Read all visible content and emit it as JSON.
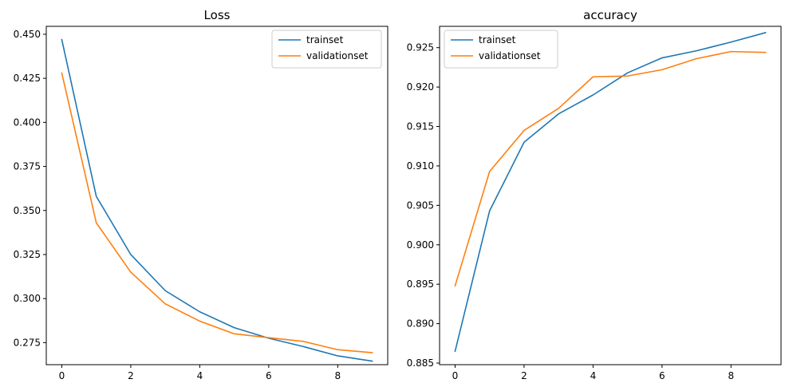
{
  "chart_data": [
    {
      "type": "line",
      "title": "Loss",
      "xlabel": "",
      "ylabel": "",
      "x": [
        0,
        1,
        2,
        3,
        4,
        5,
        6,
        7,
        8,
        9
      ],
      "xlim": [
        -0.45,
        9.45
      ],
      "ylim": [
        0.2625,
        0.4545
      ],
      "xticks": [
        0,
        2,
        4,
        6,
        8
      ],
      "yticks": [
        0.275,
        0.3,
        0.325,
        0.35,
        0.375,
        0.4,
        0.425,
        0.45
      ],
      "ytick_labels": [
        "0.275",
        "0.300",
        "0.325",
        "0.350",
        "0.375",
        "0.400",
        "0.425",
        "0.450"
      ],
      "grid": false,
      "legend_position": "top-right",
      "series": [
        {
          "name": "trainset",
          "color": "#1f77b4",
          "values": [
            0.447,
            0.358,
            0.325,
            0.3045,
            0.2925,
            0.2835,
            0.2775,
            0.2728,
            0.2675,
            0.2645
          ]
        },
        {
          "name": "validationset",
          "color": "#ff7f0e",
          "values": [
            0.428,
            0.343,
            0.315,
            0.297,
            0.2872,
            0.28,
            0.2778,
            0.2757,
            0.271,
            0.2693
          ]
        }
      ]
    },
    {
      "type": "line",
      "title": "accuracy",
      "xlabel": "",
      "ylabel": "",
      "x": [
        0,
        1,
        2,
        3,
        4,
        5,
        6,
        7,
        8,
        9
      ],
      "xlim": [
        -0.45,
        9.45
      ],
      "ylim": [
        0.8848,
        0.9277
      ],
      "xticks": [
        0,
        2,
        4,
        6,
        8
      ],
      "yticks": [
        0.885,
        0.89,
        0.895,
        0.9,
        0.905,
        0.91,
        0.915,
        0.92,
        0.925
      ],
      "ytick_labels": [
        "0.885",
        "0.890",
        "0.895",
        "0.900",
        "0.905",
        "0.910",
        "0.915",
        "0.920",
        "0.925"
      ],
      "grid": false,
      "legend_position": "top-left",
      "series": [
        {
          "name": "trainset",
          "color": "#1f77b4",
          "values": [
            0.8865,
            0.9043,
            0.913,
            0.9166,
            0.919,
            0.9218,
            0.9237,
            0.9246,
            0.9257,
            0.9269
          ]
        },
        {
          "name": "validationset",
          "color": "#ff7f0e",
          "values": [
            0.8948,
            0.9093,
            0.9145,
            0.9173,
            0.9213,
            0.9214,
            0.9222,
            0.9236,
            0.9245,
            0.9244
          ]
        }
      ]
    }
  ]
}
